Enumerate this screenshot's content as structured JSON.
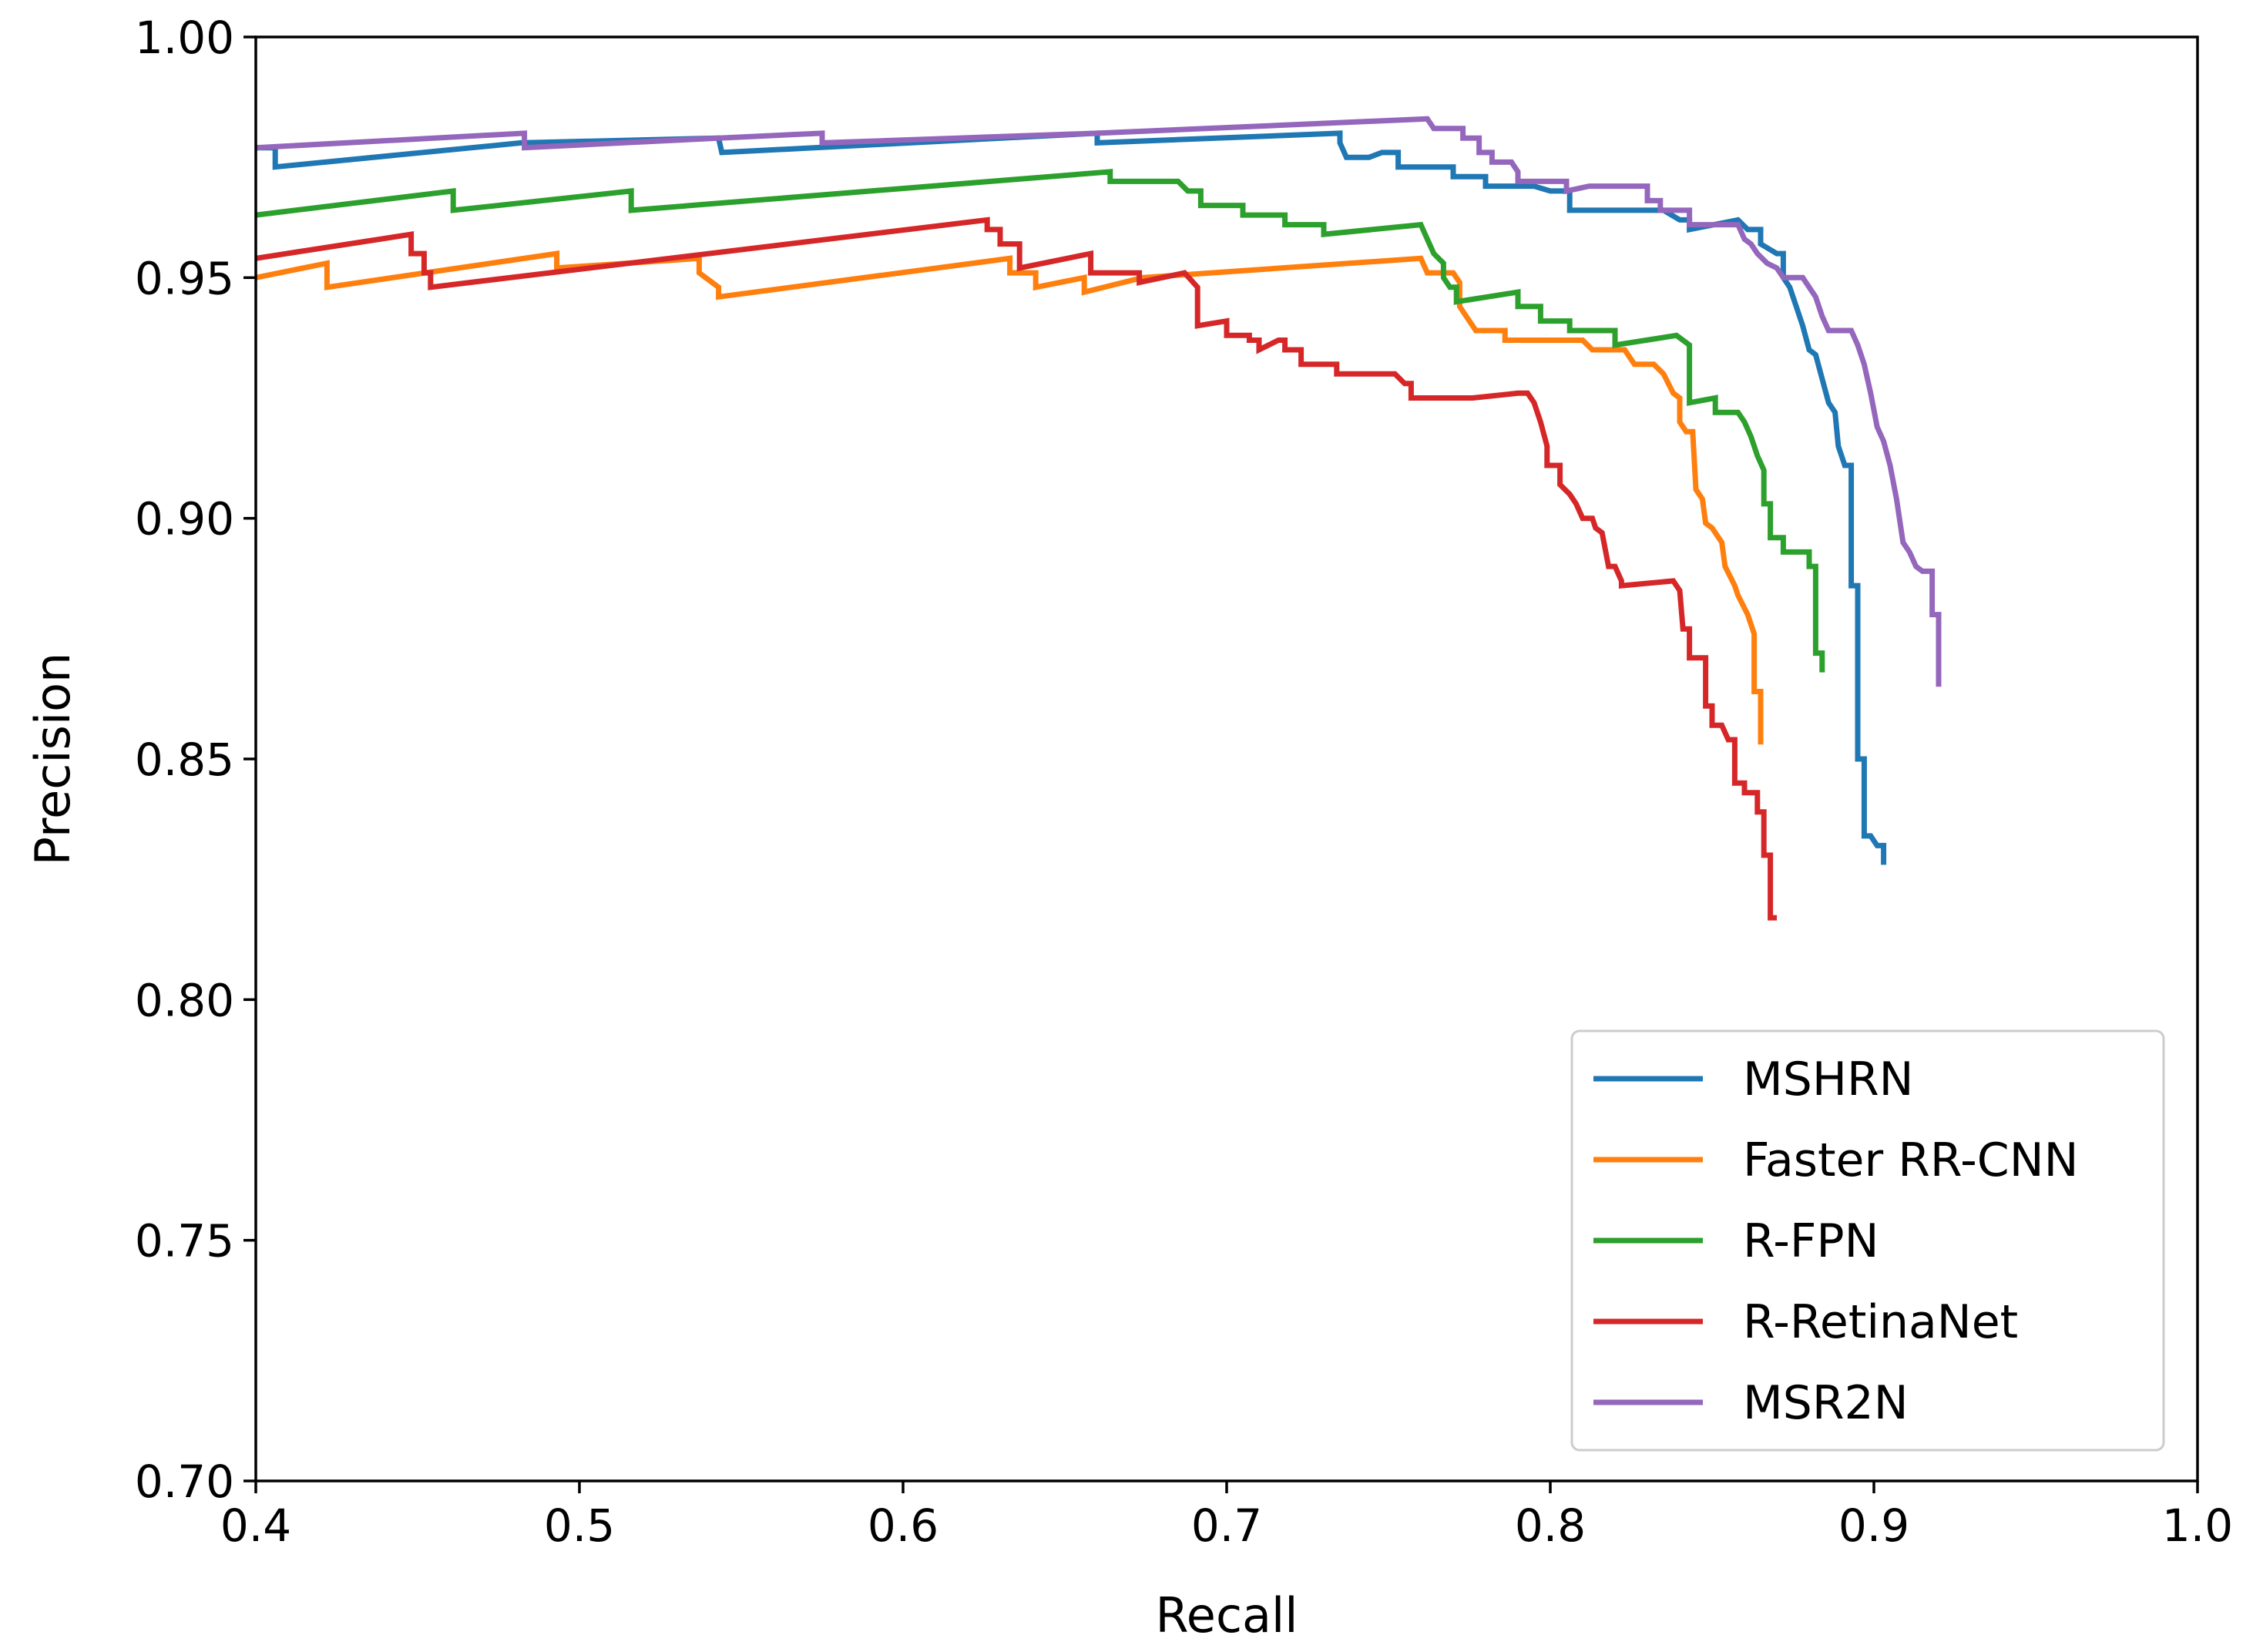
{
  "chart_data": {
    "type": "line",
    "title": "",
    "xlabel": "Recall",
    "ylabel": "Precision",
    "xlim": [
      0.4,
      1.0
    ],
    "ylim": [
      0.7,
      1.0
    ],
    "xticks": [
      "0.4",
      "0.5",
      "0.6",
      "0.7",
      "0.8",
      "0.9",
      "1.0"
    ],
    "yticks": [
      "0.70",
      "0.75",
      "0.80",
      "0.85",
      "0.90",
      "0.95",
      "1.00"
    ],
    "grid": false,
    "legend_position": "bottom-right",
    "series": [
      {
        "name": "MSHRN",
        "color": "#1f77b4",
        "points": [
          [
            0.4,
            0.977
          ],
          [
            0.406,
            0.977
          ],
          [
            0.406,
            0.973
          ],
          [
            0.482,
            0.978
          ],
          [
            0.543,
            0.979
          ],
          [
            0.544,
            0.976
          ],
          [
            0.66,
            0.98
          ],
          [
            0.66,
            0.978
          ],
          [
            0.735,
            0.98
          ],
          [
            0.735,
            0.978
          ],
          [
            0.737,
            0.975
          ],
          [
            0.744,
            0.975
          ],
          [
            0.748,
            0.976
          ],
          [
            0.753,
            0.976
          ],
          [
            0.753,
            0.973
          ],
          [
            0.77,
            0.973
          ],
          [
            0.77,
            0.971
          ],
          [
            0.78,
            0.971
          ],
          [
            0.78,
            0.969
          ],
          [
            0.795,
            0.969
          ],
          [
            0.8,
            0.968
          ],
          [
            0.806,
            0.968
          ],
          [
            0.806,
            0.964
          ],
          [
            0.835,
            0.964
          ],
          [
            0.84,
            0.962
          ],
          [
            0.843,
            0.962
          ],
          [
            0.843,
            0.96
          ],
          [
            0.858,
            0.962
          ],
          [
            0.861,
            0.96
          ],
          [
            0.865,
            0.96
          ],
          [
            0.865,
            0.957
          ],
          [
            0.87,
            0.955
          ],
          [
            0.872,
            0.955
          ],
          [
            0.872,
            0.95
          ],
          [
            0.874,
            0.948
          ],
          [
            0.876,
            0.944
          ],
          [
            0.878,
            0.94
          ],
          [
            0.88,
            0.935
          ],
          [
            0.882,
            0.934
          ],
          [
            0.884,
            0.929
          ],
          [
            0.886,
            0.924
          ],
          [
            0.888,
            0.922
          ],
          [
            0.889,
            0.915
          ],
          [
            0.891,
            0.911
          ],
          [
            0.893,
            0.911
          ],
          [
            0.893,
            0.886
          ],
          [
            0.895,
            0.886
          ],
          [
            0.895,
            0.85
          ],
          [
            0.897,
            0.85
          ],
          [
            0.897,
            0.834
          ],
          [
            0.899,
            0.834
          ],
          [
            0.901,
            0.832
          ],
          [
            0.903,
            0.832
          ],
          [
            0.903,
            0.828
          ]
        ]
      },
      {
        "name": "Faster RR-CNN",
        "color": "#ff7f0e",
        "points": [
          [
            0.4,
            0.95
          ],
          [
            0.422,
            0.953
          ],
          [
            0.422,
            0.948
          ],
          [
            0.493,
            0.955
          ],
          [
            0.493,
            0.952
          ],
          [
            0.537,
            0.954
          ],
          [
            0.537,
            0.951
          ],
          [
            0.543,
            0.948
          ],
          [
            0.543,
            0.946
          ],
          [
            0.633,
            0.954
          ],
          [
            0.633,
            0.951
          ],
          [
            0.641,
            0.951
          ],
          [
            0.641,
            0.948
          ],
          [
            0.656,
            0.95
          ],
          [
            0.656,
            0.947
          ],
          [
            0.674,
            0.95
          ],
          [
            0.76,
            0.954
          ],
          [
            0.762,
            0.951
          ],
          [
            0.77,
            0.951
          ],
          [
            0.772,
            0.949
          ],
          [
            0.772,
            0.944
          ],
          [
            0.775,
            0.941
          ],
          [
            0.777,
            0.939
          ],
          [
            0.786,
            0.939
          ],
          [
            0.786,
            0.937
          ],
          [
            0.81,
            0.937
          ],
          [
            0.813,
            0.935
          ],
          [
            0.823,
            0.935
          ],
          [
            0.826,
            0.932
          ],
          [
            0.832,
            0.932
          ],
          [
            0.835,
            0.93
          ],
          [
            0.838,
            0.926
          ],
          [
            0.84,
            0.925
          ],
          [
            0.84,
            0.92
          ],
          [
            0.842,
            0.918
          ],
          [
            0.844,
            0.918
          ],
          [
            0.845,
            0.906
          ],
          [
            0.847,
            0.904
          ],
          [
            0.848,
            0.899
          ],
          [
            0.85,
            0.898
          ],
          [
            0.853,
            0.895
          ],
          [
            0.854,
            0.89
          ],
          [
            0.857,
            0.886
          ],
          [
            0.858,
            0.884
          ],
          [
            0.861,
            0.88
          ],
          [
            0.863,
            0.876
          ],
          [
            0.863,
            0.864
          ],
          [
            0.865,
            0.864
          ],
          [
            0.865,
            0.853
          ]
        ]
      },
      {
        "name": "R-FPN",
        "color": "#2ca02c",
        "points": [
          [
            0.4,
            0.963
          ],
          [
            0.461,
            0.968
          ],
          [
            0.461,
            0.964
          ],
          [
            0.516,
            0.968
          ],
          [
            0.516,
            0.964
          ],
          [
            0.664,
            0.972
          ],
          [
            0.664,
            0.97
          ],
          [
            0.685,
            0.97
          ],
          [
            0.688,
            0.968
          ],
          [
            0.692,
            0.968
          ],
          [
            0.692,
            0.965
          ],
          [
            0.705,
            0.965
          ],
          [
            0.705,
            0.963
          ],
          [
            0.718,
            0.963
          ],
          [
            0.718,
            0.961
          ],
          [
            0.73,
            0.961
          ],
          [
            0.73,
            0.959
          ],
          [
            0.76,
            0.961
          ],
          [
            0.762,
            0.958
          ],
          [
            0.764,
            0.955
          ],
          [
            0.767,
            0.953
          ],
          [
            0.767,
            0.95
          ],
          [
            0.769,
            0.948
          ],
          [
            0.771,
            0.948
          ],
          [
            0.771,
            0.945
          ],
          [
            0.79,
            0.947
          ],
          [
            0.79,
            0.944
          ],
          [
            0.797,
            0.944
          ],
          [
            0.797,
            0.941
          ],
          [
            0.806,
            0.941
          ],
          [
            0.806,
            0.939
          ],
          [
            0.813,
            0.939
          ],
          [
            0.82,
            0.939
          ],
          [
            0.82,
            0.936
          ],
          [
            0.839,
            0.938
          ],
          [
            0.843,
            0.936
          ],
          [
            0.843,
            0.924
          ],
          [
            0.851,
            0.925
          ],
          [
            0.851,
            0.922
          ],
          [
            0.858,
            0.922
          ],
          [
            0.86,
            0.92
          ],
          [
            0.862,
            0.917
          ],
          [
            0.864,
            0.913
          ],
          [
            0.866,
            0.91
          ],
          [
            0.866,
            0.903
          ],
          [
            0.868,
            0.903
          ],
          [
            0.868,
            0.896
          ],
          [
            0.872,
            0.896
          ],
          [
            0.872,
            0.893
          ],
          [
            0.88,
            0.893
          ],
          [
            0.88,
            0.89
          ],
          [
            0.882,
            0.89
          ],
          [
            0.882,
            0.872
          ],
          [
            0.884,
            0.872
          ],
          [
            0.884,
            0.868
          ]
        ]
      },
      {
        "name": "R-RetinaNet",
        "color": "#d62728",
        "points": [
          [
            0.4,
            0.954
          ],
          [
            0.448,
            0.959
          ],
          [
            0.448,
            0.955
          ],
          [
            0.452,
            0.955
          ],
          [
            0.452,
            0.951
          ],
          [
            0.454,
            0.951
          ],
          [
            0.454,
            0.948
          ],
          [
            0.626,
            0.962
          ],
          [
            0.626,
            0.96
          ],
          [
            0.63,
            0.96
          ],
          [
            0.63,
            0.957
          ],
          [
            0.636,
            0.957
          ],
          [
            0.636,
            0.952
          ],
          [
            0.658,
            0.955
          ],
          [
            0.658,
            0.951
          ],
          [
            0.673,
            0.951
          ],
          [
            0.673,
            0.949
          ],
          [
            0.687,
            0.951
          ],
          [
            0.691,
            0.948
          ],
          [
            0.691,
            0.94
          ],
          [
            0.7,
            0.941
          ],
          [
            0.7,
            0.938
          ],
          [
            0.707,
            0.938
          ],
          [
            0.707,
            0.937
          ],
          [
            0.71,
            0.937
          ],
          [
            0.71,
            0.935
          ],
          [
            0.716,
            0.937
          ],
          [
            0.718,
            0.937
          ],
          [
            0.718,
            0.935
          ],
          [
            0.723,
            0.935
          ],
          [
            0.723,
            0.932
          ],
          [
            0.734,
            0.932
          ],
          [
            0.734,
            0.93
          ],
          [
            0.752,
            0.93
          ],
          [
            0.755,
            0.928
          ],
          [
            0.757,
            0.928
          ],
          [
            0.757,
            0.925
          ],
          [
            0.776,
            0.925
          ],
          [
            0.79,
            0.926
          ],
          [
            0.793,
            0.926
          ],
          [
            0.795,
            0.924
          ],
          [
            0.797,
            0.92
          ],
          [
            0.799,
            0.915
          ],
          [
            0.799,
            0.911
          ],
          [
            0.803,
            0.911
          ],
          [
            0.803,
            0.907
          ],
          [
            0.806,
            0.905
          ],
          [
            0.808,
            0.903
          ],
          [
            0.81,
            0.9
          ],
          [
            0.813,
            0.9
          ],
          [
            0.814,
            0.898
          ],
          [
            0.816,
            0.897
          ],
          [
            0.818,
            0.89
          ],
          [
            0.82,
            0.89
          ],
          [
            0.822,
            0.887
          ],
          [
            0.822,
            0.886
          ],
          [
            0.838,
            0.887
          ],
          [
            0.84,
            0.885
          ],
          [
            0.841,
            0.877
          ],
          [
            0.843,
            0.877
          ],
          [
            0.843,
            0.871
          ],
          [
            0.848,
            0.871
          ],
          [
            0.848,
            0.861
          ],
          [
            0.85,
            0.861
          ],
          [
            0.85,
            0.857
          ],
          [
            0.853,
            0.857
          ],
          [
            0.855,
            0.854
          ],
          [
            0.857,
            0.854
          ],
          [
            0.857,
            0.845
          ],
          [
            0.86,
            0.845
          ],
          [
            0.86,
            0.843
          ],
          [
            0.864,
            0.843
          ],
          [
            0.864,
            0.839
          ],
          [
            0.866,
            0.839
          ],
          [
            0.866,
            0.83
          ],
          [
            0.868,
            0.83
          ],
          [
            0.868,
            0.817
          ],
          [
            0.87,
            0.817
          ]
        ]
      },
      {
        "name": "MSR2N",
        "color": "#9467bd",
        "points": [
          [
            0.4,
            0.977
          ],
          [
            0.483,
            0.98
          ],
          [
            0.483,
            0.977
          ],
          [
            0.543,
            0.979
          ],
          [
            0.575,
            0.98
          ],
          [
            0.575,
            0.978
          ],
          [
            0.66,
            0.98
          ],
          [
            0.762,
            0.983
          ],
          [
            0.764,
            0.981
          ],
          [
            0.773,
            0.981
          ],
          [
            0.773,
            0.979
          ],
          [
            0.778,
            0.979
          ],
          [
            0.778,
            0.976
          ],
          [
            0.782,
            0.976
          ],
          [
            0.782,
            0.974
          ],
          [
            0.788,
            0.974
          ],
          [
            0.79,
            0.972
          ],
          [
            0.79,
            0.97
          ],
          [
            0.805,
            0.97
          ],
          [
            0.805,
            0.968
          ],
          [
            0.812,
            0.969
          ],
          [
            0.83,
            0.969
          ],
          [
            0.83,
            0.966
          ],
          [
            0.834,
            0.966
          ],
          [
            0.834,
            0.964
          ],
          [
            0.843,
            0.964
          ],
          [
            0.843,
            0.961
          ],
          [
            0.858,
            0.961
          ],
          [
            0.86,
            0.958
          ],
          [
            0.862,
            0.957
          ],
          [
            0.864,
            0.955
          ],
          [
            0.867,
            0.953
          ],
          [
            0.87,
            0.952
          ],
          [
            0.872,
            0.95
          ],
          [
            0.878,
            0.95
          ],
          [
            0.88,
            0.948
          ],
          [
            0.882,
            0.946
          ],
          [
            0.884,
            0.942
          ],
          [
            0.886,
            0.939
          ],
          [
            0.893,
            0.939
          ],
          [
            0.895,
            0.936
          ],
          [
            0.897,
            0.932
          ],
          [
            0.899,
            0.926
          ],
          [
            0.901,
            0.919
          ],
          [
            0.903,
            0.916
          ],
          [
            0.905,
            0.911
          ],
          [
            0.907,
            0.904
          ],
          [
            0.909,
            0.895
          ],
          [
            0.911,
            0.893
          ],
          [
            0.913,
            0.89
          ],
          [
            0.915,
            0.889
          ],
          [
            0.918,
            0.889
          ],
          [
            0.918,
            0.88
          ],
          [
            0.92,
            0.88
          ],
          [
            0.92,
            0.865
          ]
        ]
      }
    ]
  }
}
